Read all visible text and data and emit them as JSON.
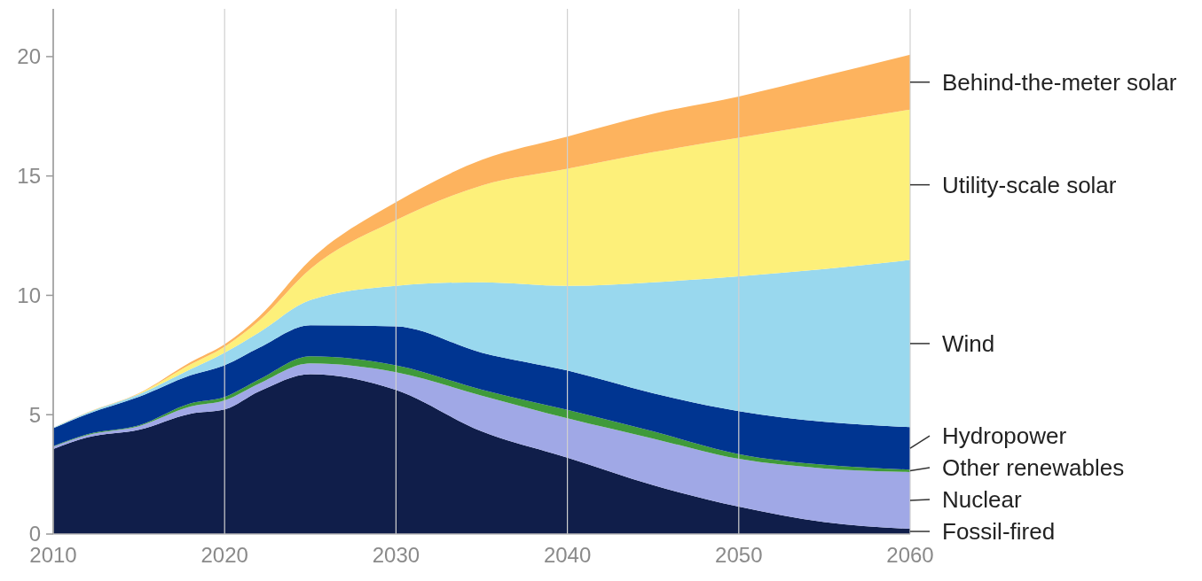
{
  "chart_data": {
    "type": "area",
    "stacked": true,
    "x": [
      2010,
      2012,
      2015,
      2018,
      2020,
      2022,
      2025,
      2030,
      2035,
      2040,
      2045,
      2050,
      2055,
      2060
    ],
    "xlim": [
      2010,
      2060
    ],
    "xticks": [
      2010,
      2020,
      2030,
      2040,
      2050,
      2060
    ],
    "ylim": [
      0,
      22
    ],
    "yticks": [
      0,
      5,
      10,
      15,
      20
    ],
    "grid": "x",
    "legend": false,
    "series": [
      {
        "name": "Fossil-fired",
        "color": "#101e4a",
        "values": [
          3.56,
          4.05,
          4.37,
          5.04,
          5.22,
          5.97,
          6.7,
          6.04,
          4.3,
          3.2,
          2.05,
          1.15,
          0.5,
          0.22
        ]
      },
      {
        "name": "Nuclear",
        "color": "#a0a8e6",
        "values": [
          0.1,
          0.1,
          0.15,
          0.3,
          0.38,
          0.33,
          0.45,
          0.74,
          1.5,
          1.65,
          1.95,
          2.0,
          2.25,
          2.38
        ]
      },
      {
        "name": "Other renewables",
        "color": "#3f9a3a",
        "values": [
          0.02,
          0.03,
          0.03,
          0.13,
          0.14,
          0.17,
          0.3,
          0.29,
          0.25,
          0.35,
          0.3,
          0.2,
          0.15,
          0.1
        ]
      },
      {
        "name": "Hydropower",
        "color": "#003591",
        "values": [
          0.75,
          0.85,
          1.2,
          1.18,
          1.33,
          1.33,
          1.3,
          1.63,
          1.55,
          1.65,
          1.6,
          1.8,
          1.8,
          1.78
        ]
      },
      {
        "name": "Wind",
        "color": "#99d8ee",
        "values": [
          0.02,
          0.05,
          0.1,
          0.25,
          0.53,
          0.64,
          1.05,
          1.7,
          2.95,
          3.55,
          4.65,
          5.65,
          6.4,
          7.0
        ]
      },
      {
        "name": "Utility-scale solar",
        "color": "#fdf07a",
        "values": [
          0,
          0.01,
          0.03,
          0.2,
          0.25,
          0.49,
          1.3,
          2.75,
          4.05,
          4.9,
          5.45,
          5.8,
          6.1,
          6.3
        ]
      },
      {
        "name": "Behind-the-meter solar",
        "color": "#fdb35e",
        "values": [
          0,
          0.01,
          0.02,
          0.1,
          0.1,
          0.17,
          0.38,
          0.75,
          1.07,
          1.35,
          1.6,
          1.73,
          2.0,
          2.3
        ]
      }
    ]
  }
}
